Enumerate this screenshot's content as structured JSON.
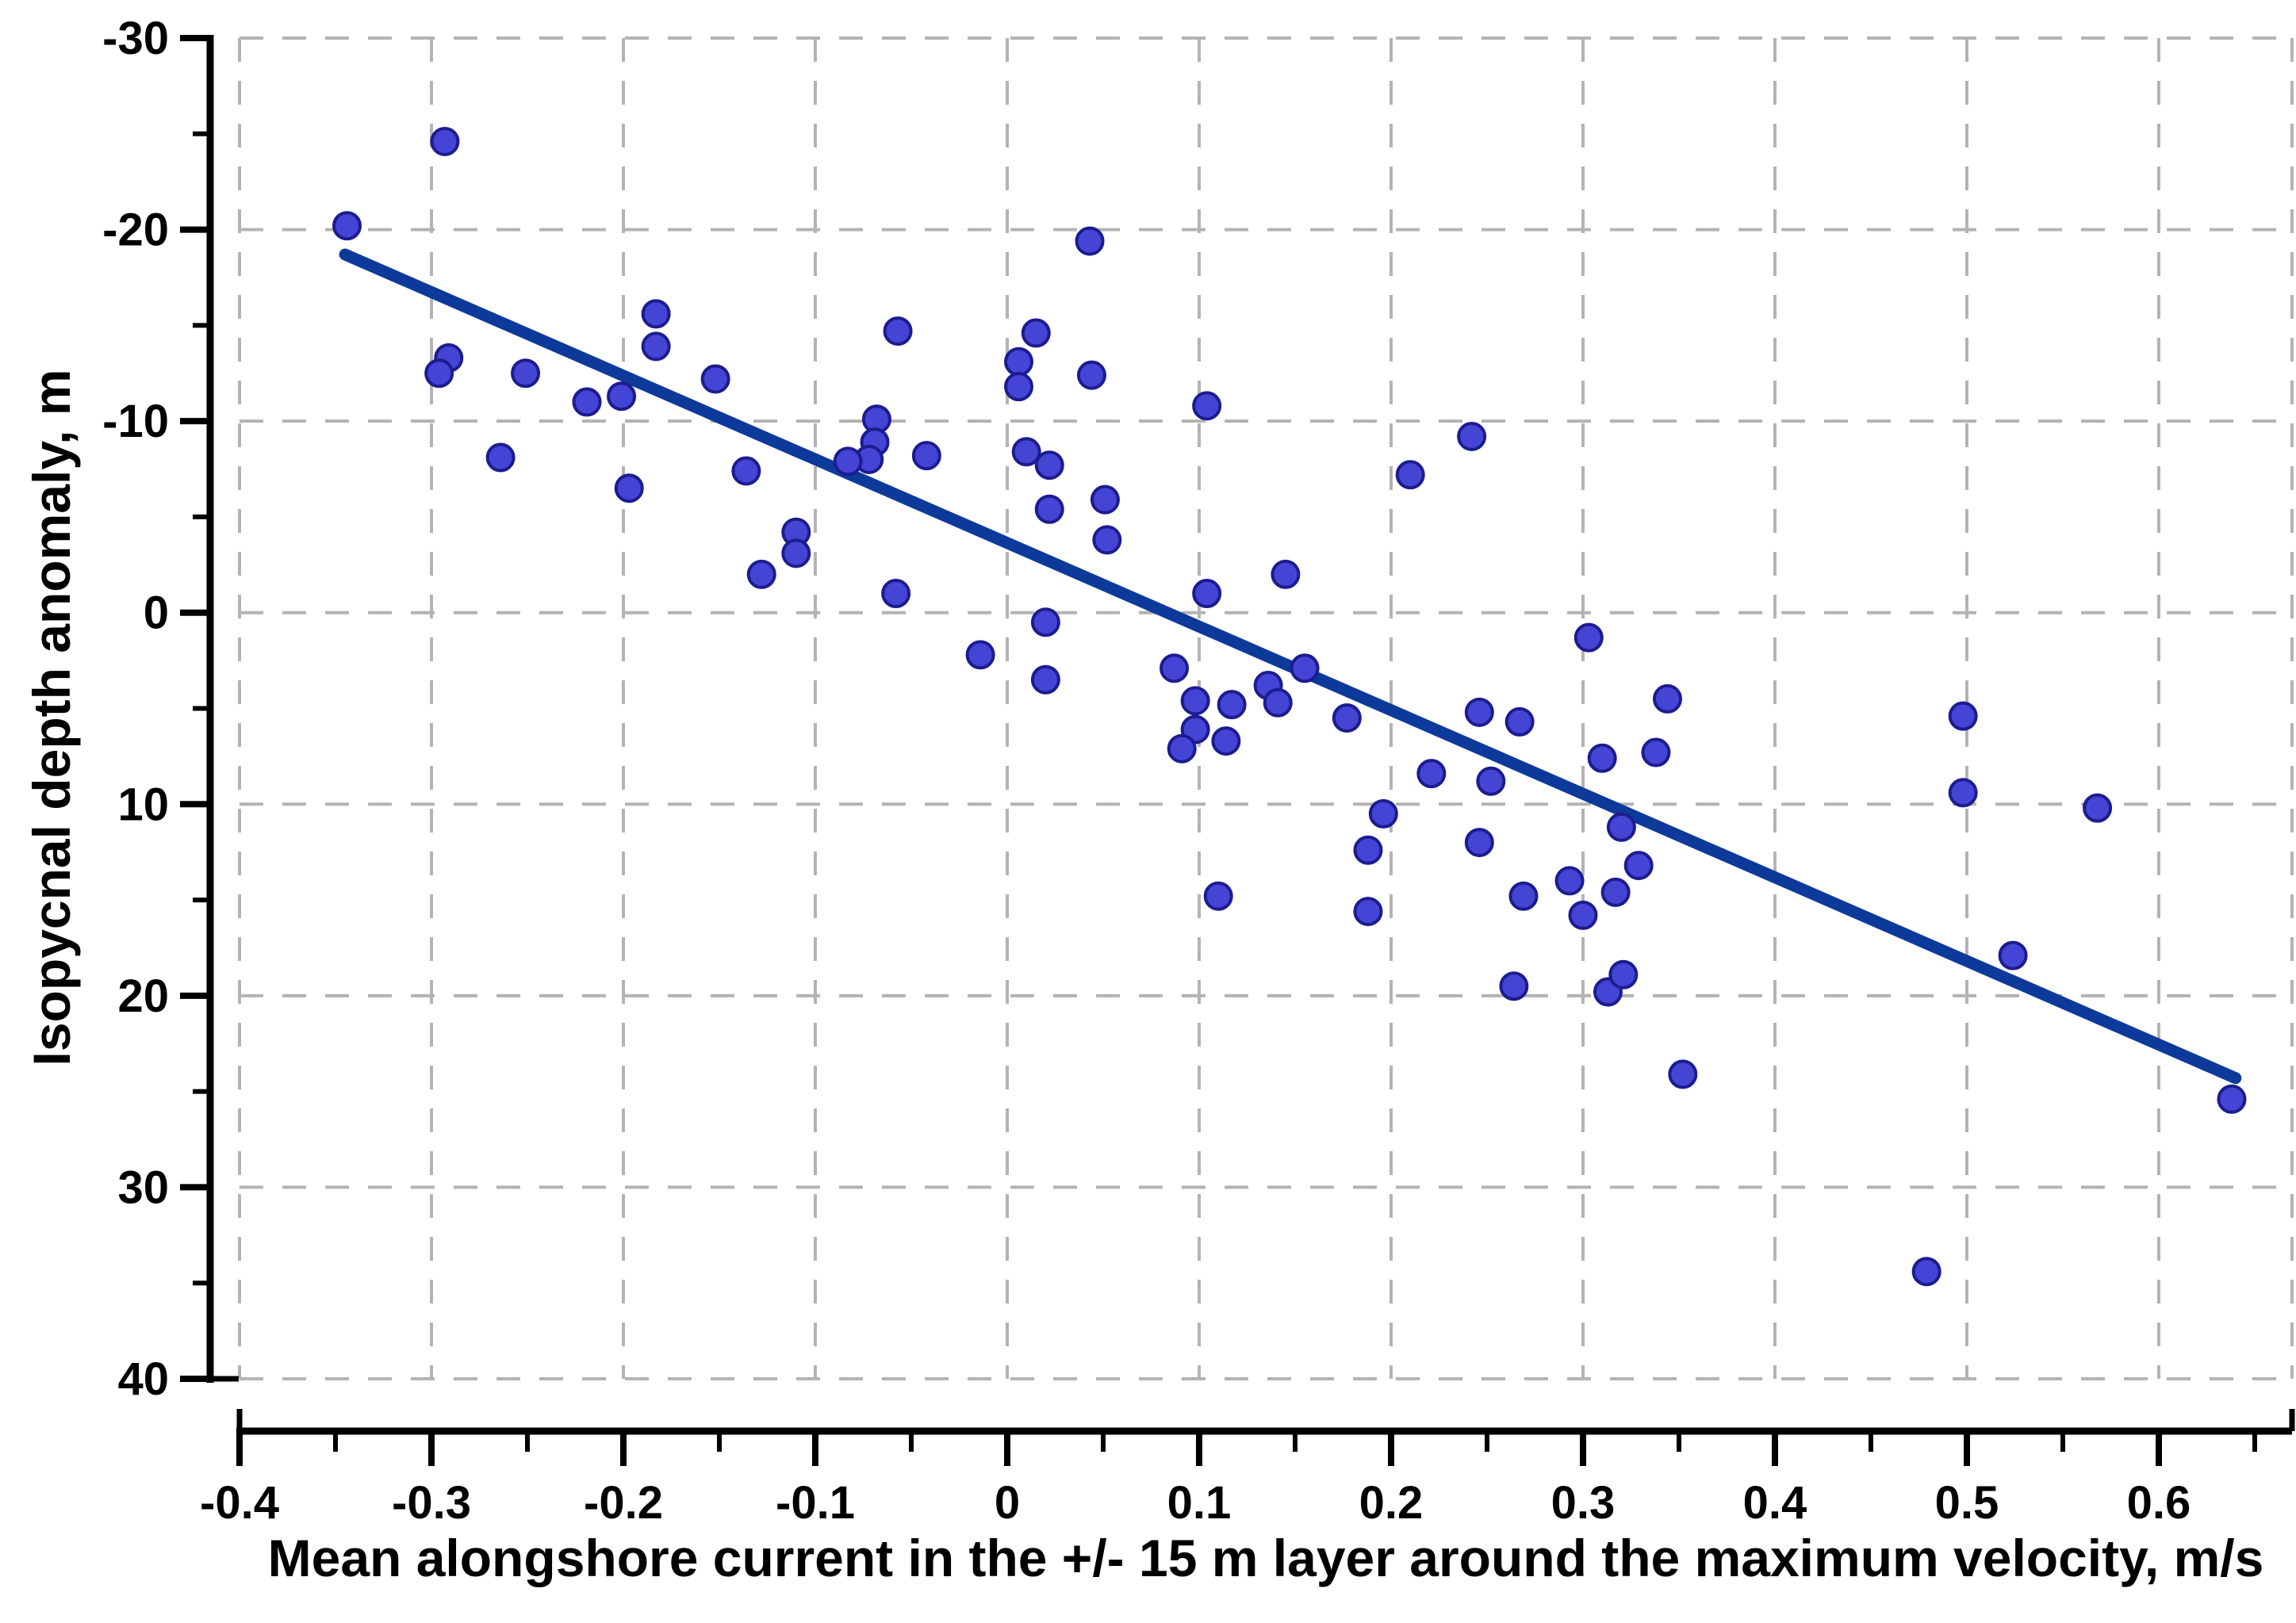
{
  "chart_data": {
    "type": "scatter",
    "title": "",
    "xlabel": "Mean alongshore current in the +/- 15 m layer around the maximum velocity, m/s",
    "ylabel": "Isopycnal depth anomaly, m",
    "x_axis": {
      "min": -0.4,
      "max": 0.669,
      "major_ticks": [
        -0.4,
        -0.3,
        -0.2,
        -0.1,
        0,
        0.1,
        0.2,
        0.3,
        0.4,
        0.5,
        0.6
      ],
      "major_tick_labels": [
        "-0.4",
        "-0.3",
        "-0.2",
        "-0.1",
        "0",
        "0.1",
        "0.2",
        "0.3",
        "0.4",
        "0.5",
        "0.6"
      ],
      "minor_ticks": [
        -0.35,
        -0.25,
        -0.15,
        -0.05,
        0.05,
        0.15,
        0.25,
        0.35,
        0.45,
        0.55,
        0.65
      ]
    },
    "y_axis": {
      "min": -30,
      "max": 40,
      "inverted": true,
      "major_ticks": [
        -30,
        -20,
        -10,
        0,
        10,
        20,
        30,
        40
      ],
      "major_tick_labels": [
        "-30",
        "-20",
        "-10",
        "0",
        "10",
        "20",
        "30",
        "40"
      ],
      "minor_ticks": [
        -25,
        -15,
        -5,
        5,
        15,
        25,
        35
      ]
    },
    "grid": {
      "show": true,
      "style": "dashed",
      "on_major_only": true,
      "right_edge_line": true
    },
    "legend": {
      "show": false
    },
    "series": [
      {
        "name": "isopycnal-depth-anomaly-points",
        "marker": "circle",
        "points": [
          [
            -0.293,
            -24.6
          ],
          [
            -0.344,
            -20.2
          ],
          [
            -0.291,
            -13.3
          ],
          [
            -0.296,
            -12.5
          ],
          [
            -0.251,
            -12.5
          ],
          [
            -0.183,
            -15.6
          ],
          [
            -0.183,
            -13.9
          ],
          [
            -0.219,
            -11.0
          ],
          [
            -0.201,
            -11.3
          ],
          [
            -0.264,
            -8.1
          ],
          [
            -0.197,
            -6.5
          ],
          [
            0.043,
            -19.4
          ],
          [
            -0.057,
            -14.7
          ],
          [
            0.015,
            -14.6
          ],
          [
            0.006,
            -13.1
          ],
          [
            0.006,
            -11.8
          ],
          [
            0.044,
            -12.4
          ],
          [
            -0.152,
            -12.2
          ],
          [
            0.104,
            -10.8
          ],
          [
            -0.068,
            -10.1
          ],
          [
            -0.069,
            -8.9
          ],
          [
            -0.072,
            -8.0
          ],
          [
            -0.083,
            -7.9
          ],
          [
            -0.136,
            -7.4
          ],
          [
            -0.042,
            -8.2
          ],
          [
            0.01,
            -8.4
          ],
          [
            0.022,
            -7.7
          ],
          [
            0.051,
            -5.9
          ],
          [
            0.022,
            -5.4
          ],
          [
            0.052,
            -3.8
          ],
          [
            -0.11,
            -4.2
          ],
          [
            -0.11,
            -3.1
          ],
          [
            -0.128,
            -2.0
          ],
          [
            -0.058,
            -1.0
          ],
          [
            -0.014,
            2.2
          ],
          [
            0.02,
            0.5
          ],
          [
            0.02,
            3.5
          ],
          [
            0.242,
            -9.2
          ],
          [
            0.21,
            -7.2
          ],
          [
            0.145,
            -2.0
          ],
          [
            0.104,
            -1.0
          ],
          [
            0.087,
            2.9
          ],
          [
            0.136,
            3.8
          ],
          [
            0.155,
            2.9
          ],
          [
            0.141,
            4.7
          ],
          [
            0.098,
            4.6
          ],
          [
            0.117,
            4.8
          ],
          [
            0.098,
            6.1
          ],
          [
            0.091,
            7.1
          ],
          [
            0.114,
            6.7
          ],
          [
            0.177,
            5.5
          ],
          [
            0.246,
            5.2
          ],
          [
            0.267,
            5.7
          ],
          [
            0.303,
            1.3
          ],
          [
            0.344,
            4.5
          ],
          [
            0.31,
            7.6
          ],
          [
            0.338,
            7.3
          ],
          [
            0.221,
            8.4
          ],
          [
            0.252,
            8.8
          ],
          [
            0.196,
            10.5
          ],
          [
            0.188,
            12.4
          ],
          [
            0.246,
            12.0
          ],
          [
            0.32,
            11.2
          ],
          [
            0.329,
            13.2
          ],
          [
            0.293,
            14.0
          ],
          [
            0.269,
            14.8
          ],
          [
            0.317,
            14.6
          ],
          [
            0.3,
            15.8
          ],
          [
            0.188,
            15.6
          ],
          [
            0.11,
            14.8
          ],
          [
            0.498,
            5.4
          ],
          [
            0.498,
            9.4
          ],
          [
            0.568,
            10.2
          ],
          [
            0.524,
            17.9
          ],
          [
            0.479,
            34.4
          ],
          [
            0.638,
            25.4
          ],
          [
            0.264,
            19.5
          ],
          [
            0.313,
            19.8
          ],
          [
            0.321,
            18.9
          ],
          [
            0.352,
            24.1
          ]
        ]
      }
    ],
    "trendline": {
      "x1": -0.345,
      "y1": -18.7,
      "x2": 0.64,
      "y2": 24.3
    },
    "colors": {
      "marker_fill": "#4444d5",
      "marker_edge": "#1c1c90",
      "trendline": "#0d3a9a",
      "gridline": "#b3b3b3",
      "axis": "#000000",
      "background": "#ffffff"
    }
  }
}
